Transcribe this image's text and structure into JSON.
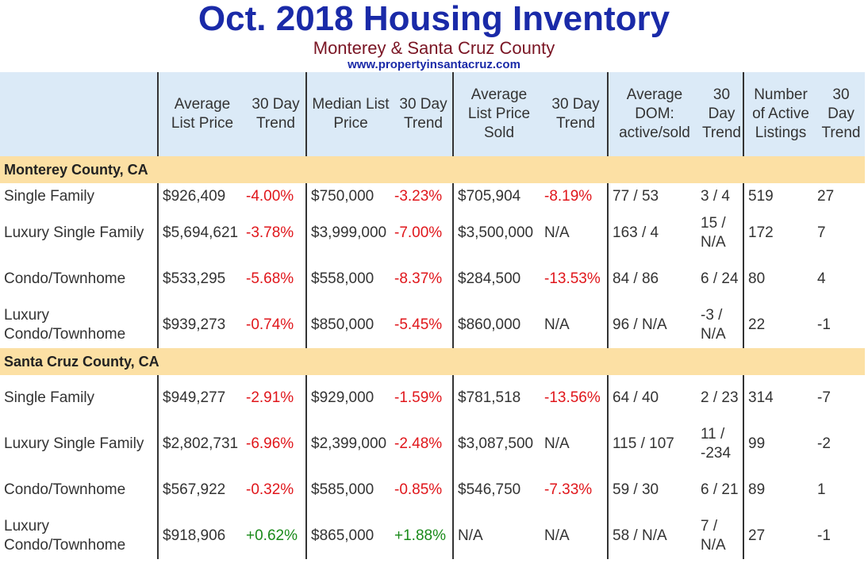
{
  "header": {
    "title": "Oct. 2018 Housing Inventory",
    "subtitle": "Monterey & Santa Cruz County",
    "website": "www.propertyinsantacruz.com"
  },
  "columns": [
    "",
    "Average List Price",
    "30 Day Trend",
    "Median List Price",
    "30 Day Trend",
    "Average List Price Sold",
    "30 Day Trend",
    "Average DOM: active/sold",
    "30 Day Trend",
    "Number of Active Listings",
    "30 Day Trend"
  ],
  "sections": [
    {
      "name": "Monterey County, CA",
      "rows": [
        [
          "Single Family",
          "$926,409",
          "-4.00%",
          "$750,000",
          "-3.23%",
          "$705,904",
          "-8.19%",
          "77 / 53",
          "3 / 4",
          "519",
          "27"
        ],
        [
          "Luxury Single Family",
          "$5,694,621",
          "-3.78%",
          "$3,999,000",
          "-7.00%",
          "$3,500,000",
          "N/A",
          "163 / 4",
          "15 / N/A",
          "172",
          "7"
        ],
        [
          "Condo/Townhome",
          "$533,295",
          "-5.68%",
          "$558,000",
          "-8.37%",
          "$284,500",
          "-13.53%",
          "84 / 86",
          "6 / 24",
          "80",
          "4"
        ],
        [
          "Luxury Condo/Townhome",
          "$939,273",
          "-0.74%",
          "$850,000",
          "-5.45%",
          "$860,000",
          "N/A",
          "96 / N/A",
          "-3 / N/A",
          "22",
          "-1"
        ]
      ]
    },
    {
      "name": "Santa Cruz County, CA",
      "rows": [
        [
          "Single Family",
          "$949,277",
          "-2.91%",
          "$929,000",
          "-1.59%",
          "$781,518",
          "-13.56%",
          "64 / 40",
          "2 / 23",
          "314",
          "-7"
        ],
        [
          "Luxury Single Family",
          "$2,802,731",
          "-6.96%",
          "$2,399,000",
          "-2.48%",
          "$3,087,500",
          "N/A",
          "115 / 107",
          "11 / -234",
          "99",
          "-2"
        ],
        [
          "Condo/Townhome",
          "$567,922",
          "-0.32%",
          "$585,000",
          "-0.85%",
          "$546,750",
          "-7.33%",
          "59 / 30",
          "6 / 21",
          "89",
          "1"
        ],
        [
          "Luxury Condo/Townhome",
          "$918,906",
          "+0.62%",
          "$865,000",
          "+1.88%",
          "N/A",
          "N/A",
          "58 / N/A",
          "7 / N/A",
          "27",
          "-1"
        ]
      ]
    }
  ],
  "colors": {
    "title": "#1a2aa8",
    "subtitle": "#7a1524",
    "header_bg": "#dbeaf7",
    "section_bg": "#fce0a4",
    "negative": "#e0161b",
    "positive": "#1a8a1a"
  }
}
